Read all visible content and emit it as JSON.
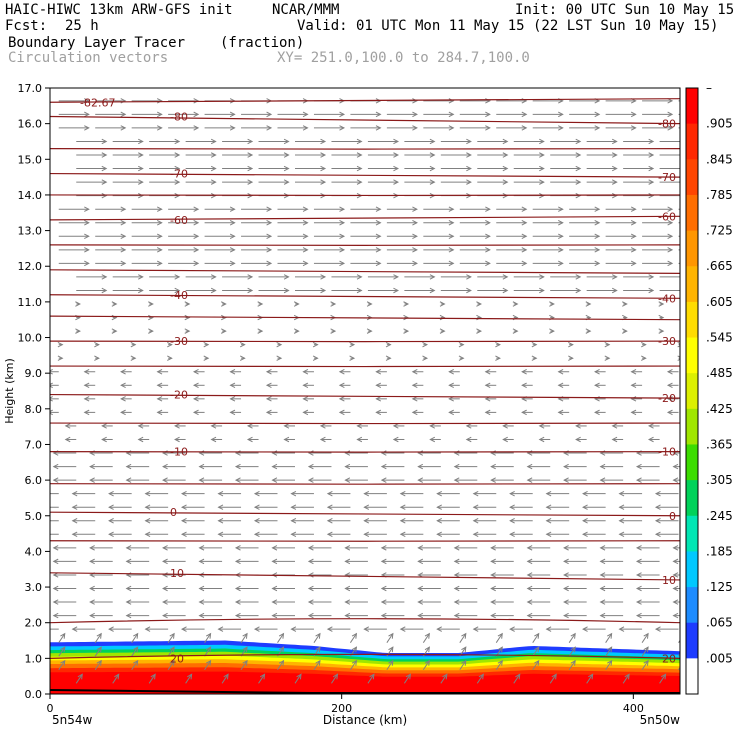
{
  "header": {
    "model": "HAIC-HIWC 13km ARW-GFS init",
    "org": "NCAR/MMM",
    "init": "Init: 00 UTC Sun 10 May 15",
    "fcst_label": "Fcst:",
    "fcst_value": "25 h",
    "valid": "Valid: 01 UTC Mon 11 May 15 (22 LST Sun 10 May 15)",
    "field": "Boundary Layer Tracer",
    "units": "(fraction)",
    "overlay": "Circulation vectors",
    "xy": "XY= 251.0,100.0 to 284.7,100.0"
  },
  "colors": {
    "contour": "#8b1a1a",
    "vector": "#808080",
    "colorbar": [
      "#ffffff",
      "#1e3cff",
      "#1e8cff",
      "#00c8ff",
      "#00e6b4",
      "#00d25a",
      "#3cdc00",
      "#a0e600",
      "#dcf000",
      "#ffff00",
      "#ffdc00",
      "#ffb400",
      "#ff9600",
      "#ff6e00",
      "#ff4600",
      "#ff2800",
      "#ff0000"
    ]
  },
  "chart_data": {
    "type": "heatmap",
    "title": "Boundary Layer Tracer",
    "xlabel": "Distance (km)",
    "ylabel": "Height (km)",
    "xlim": [
      0,
      432
    ],
    "ylim": [
      0.0,
      17.0
    ],
    "x_ticks": [
      "0",
      "200",
      "400"
    ],
    "x_tick_values": [
      0,
      200,
      400
    ],
    "x_end_labels": {
      "left": "5n54w",
      "right": "5n50w"
    },
    "y_ticks": [
      "0.0",
      "1.0",
      "2.0",
      "3.0",
      "4.0",
      "5.0",
      "6.0",
      "7.0",
      "8.0",
      "9.0",
      "10.0",
      "11.0",
      "12.0",
      "13.0",
      "14.0",
      "15.0",
      "16.0",
      "17.0"
    ],
    "colorbar_labels": [
      "–",
      ".905",
      ".845",
      ".785",
      ".725",
      ".665",
      ".605",
      ".545",
      ".485",
      ".425",
      ".365",
      ".305",
      ".245",
      ".185",
      ".125",
      ".065",
      ".005"
    ],
    "tracer_top_km": [
      {
        "x": 0,
        "top": 1.45
      },
      {
        "x": 120,
        "top": 1.5
      },
      {
        "x": 180,
        "top": 1.35
      },
      {
        "x": 230,
        "top": 1.15
      },
      {
        "x": 280,
        "top": 1.15
      },
      {
        "x": 330,
        "top": 1.35
      },
      {
        "x": 432,
        "top": 1.2
      }
    ],
    "temperature_contours": [
      {
        "label": "-82.67",
        "left_km": 16.6,
        "right_km": 16.7
      },
      {
        "label": "-80",
        "left_km": 16.2,
        "right_km": 16.0
      },
      {
        "label": "",
        "left_km": 15.3,
        "right_km": 15.3
      },
      {
        "label": "-70",
        "left_km": 14.6,
        "right_km": 14.5
      },
      {
        "label": "",
        "left_km": 14.0,
        "right_km": 14.0
      },
      {
        "label": "-60",
        "left_km": 13.3,
        "right_km": 13.4
      },
      {
        "label": "",
        "left_km": 12.6,
        "right_km": 12.6
      },
      {
        "label": "",
        "left_km": 11.9,
        "right_km": 11.8
      },
      {
        "label": "-40",
        "left_km": 11.2,
        "right_km": 11.1
      },
      {
        "label": "",
        "left_km": 10.6,
        "right_km": 10.5
      },
      {
        "label": "-30",
        "left_km": 9.9,
        "right_km": 9.9
      },
      {
        "label": "",
        "left_km": 9.2,
        "right_km": 9.2
      },
      {
        "label": "-20",
        "left_km": 8.4,
        "right_km": 8.3
      },
      {
        "label": "",
        "left_km": 7.6,
        "right_km": 7.6
      },
      {
        "label": "-10",
        "left_km": 6.8,
        "right_km": 6.8
      },
      {
        "label": "",
        "left_km": 5.9,
        "right_km": 5.9
      },
      {
        "label": "0",
        "left_km": 5.1,
        "right_km": 5.0
      },
      {
        "label": "",
        "left_km": 4.3,
        "right_km": 4.3
      },
      {
        "label": "10",
        "left_km": 3.4,
        "right_km": 3.2
      },
      {
        "label": "",
        "left_km": 2.0,
        "right_km": 2.0
      },
      {
        "label": "20",
        "left_km": 1.0,
        "right_km": 1.0
      }
    ]
  }
}
